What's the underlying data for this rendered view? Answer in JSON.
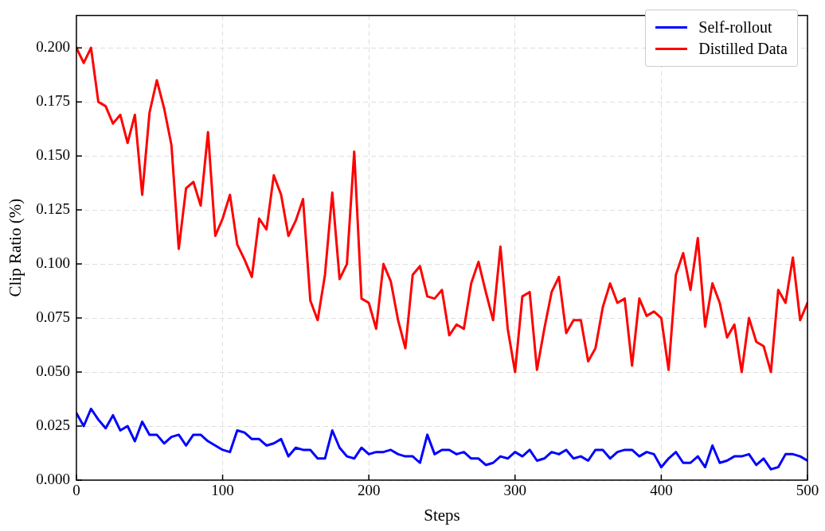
{
  "chart_data": {
    "type": "line",
    "xlabel": "Steps",
    "ylabel": "Clip Ratio (%)",
    "x": [
      0,
      5,
      10,
      15,
      20,
      25,
      30,
      35,
      40,
      45,
      50,
      55,
      60,
      65,
      70,
      75,
      80,
      85,
      90,
      95,
      100,
      105,
      110,
      115,
      120,
      125,
      130,
      135,
      140,
      145,
      150,
      155,
      160,
      165,
      170,
      175,
      180,
      185,
      190,
      195,
      200,
      205,
      210,
      215,
      220,
      225,
      230,
      235,
      240,
      245,
      250,
      255,
      260,
      265,
      270,
      275,
      280,
      285,
      290,
      295,
      300,
      305,
      310,
      315,
      320,
      325,
      330,
      335,
      340,
      345,
      350,
      355,
      360,
      365,
      370,
      375,
      380,
      385,
      390,
      395,
      400,
      405,
      410,
      415,
      420,
      425,
      430,
      435,
      440,
      445,
      450,
      455,
      460,
      465,
      470,
      475,
      480,
      485,
      490,
      495,
      500
    ],
    "series": [
      {
        "name": "Self-rollout",
        "color": "#0000ff",
        "values": [
          0.031,
          0.025,
          0.033,
          0.028,
          0.024,
          0.03,
          0.023,
          0.025,
          0.018,
          0.027,
          0.021,
          0.021,
          0.017,
          0.02,
          0.021,
          0.016,
          0.021,
          0.021,
          0.018,
          0.016,
          0.014,
          0.013,
          0.023,
          0.022,
          0.019,
          0.019,
          0.016,
          0.017,
          0.019,
          0.011,
          0.015,
          0.014,
          0.014,
          0.01,
          0.01,
          0.023,
          0.015,
          0.011,
          0.01,
          0.015,
          0.012,
          0.013,
          0.013,
          0.014,
          0.012,
          0.011,
          0.011,
          0.008,
          0.021,
          0.012,
          0.014,
          0.014,
          0.012,
          0.013,
          0.01,
          0.01,
          0.007,
          0.008,
          0.011,
          0.01,
          0.013,
          0.011,
          0.014,
          0.009,
          0.01,
          0.013,
          0.012,
          0.014,
          0.01,
          0.011,
          0.009,
          0.014,
          0.014,
          0.01,
          0.013,
          0.014,
          0.014,
          0.011,
          0.013,
          0.012,
          0.006,
          0.01,
          0.013,
          0.008,
          0.008,
          0.011,
          0.006,
          0.016,
          0.008,
          0.009,
          0.011,
          0.011,
          0.012,
          0.007,
          0.01,
          0.005,
          0.006,
          0.012,
          0.012,
          0.011,
          0.009
        ]
      },
      {
        "name": "Distilled Data",
        "color": "#ff0000",
        "values": [
          0.2,
          0.193,
          0.2,
          0.175,
          0.173,
          0.165,
          0.169,
          0.156,
          0.169,
          0.132,
          0.17,
          0.185,
          0.172,
          0.155,
          0.107,
          0.135,
          0.138,
          0.127,
          0.161,
          0.113,
          0.121,
          0.132,
          0.109,
          0.102,
          0.094,
          0.121,
          0.116,
          0.141,
          0.132,
          0.113,
          0.12,
          0.13,
          0.083,
          0.074,
          0.095,
          0.133,
          0.093,
          0.1,
          0.152,
          0.084,
          0.082,
          0.07,
          0.1,
          0.092,
          0.074,
          0.061,
          0.095,
          0.099,
          0.085,
          0.084,
          0.088,
          0.067,
          0.072,
          0.07,
          0.091,
          0.101,
          0.087,
          0.074,
          0.108,
          0.07,
          0.05,
          0.085,
          0.087,
          0.051,
          0.07,
          0.087,
          0.094,
          0.068,
          0.074,
          0.074,
          0.055,
          0.061,
          0.08,
          0.091,
          0.082,
          0.084,
          0.053,
          0.084,
          0.076,
          0.078,
          0.075,
          0.051,
          0.095,
          0.105,
          0.088,
          0.112,
          0.071,
          0.091,
          0.082,
          0.066,
          0.072,
          0.05,
          0.075,
          0.064,
          0.062,
          0.05,
          0.088,
          0.082,
          0.103,
          0.074,
          0.082
        ]
      }
    ],
    "xlim": [
      0,
      500
    ],
    "xticks": [
      0,
      100,
      200,
      300,
      400,
      500
    ],
    "ylim": [
      0,
      0.215
    ],
    "yticks": [
      {
        "value": 0,
        "label": "0.000"
      },
      {
        "value": 0.025,
        "label": "0.025"
      },
      {
        "value": 0.05,
        "label": "0.050"
      },
      {
        "value": 0.075,
        "label": "0.075"
      },
      {
        "value": 0.1,
        "label": "0.100"
      },
      {
        "value": 0.125,
        "label": "0.125"
      },
      {
        "value": 0.15,
        "label": "0.150"
      },
      {
        "value": 0.175,
        "label": "0.175"
      },
      {
        "value": 0.2,
        "label": "0.200"
      }
    ],
    "grid": true,
    "legend": "top right",
    "line_style": "solid"
  }
}
